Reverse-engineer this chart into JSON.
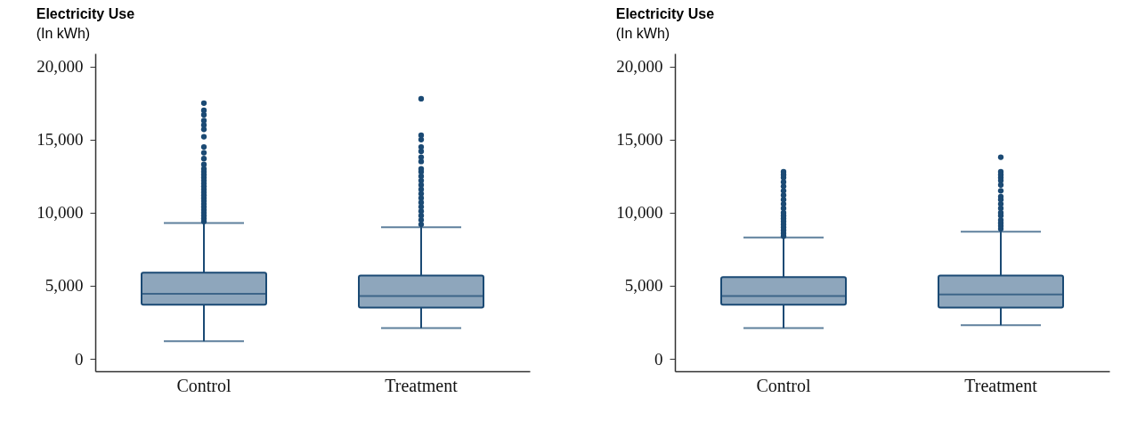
{
  "chart_data": [
    {
      "type": "box",
      "title": "Electricity Use",
      "subtitle": "(In kWh)",
      "categories": [
        "Control",
        "Treatment"
      ],
      "ylim": [
        -850,
        20900
      ],
      "yticks": [
        {
          "value": 0,
          "label": "0"
        },
        {
          "value": 5000,
          "label": "5,000"
        },
        {
          "value": 10000,
          "label": "10,000"
        },
        {
          "value": 15000,
          "label": "15,000"
        },
        {
          "value": 20000,
          "label": "20,000"
        }
      ],
      "grid": false,
      "series": [
        {
          "color": "#8ea6bc",
          "boxes": [
            {
              "low": 1200,
              "q1": 3700,
              "median": 4450,
              "q3": 5900,
              "high": 9300,
              "outliers": [
                9400,
                9600,
                9800,
                10000,
                10200,
                10400,
                10600,
                10800,
                11000,
                11200,
                11400,
                11600,
                11800,
                12000,
                12200,
                12400,
                12600,
                12800,
                13000,
                13300,
                13700,
                14100,
                14500,
                15200,
                15700,
                16000,
                16300,
                16700,
                17000,
                17500
              ]
            },
            {
              "low": 2100,
              "q1": 3500,
              "median": 4300,
              "q3": 5700,
              "high": 9000,
              "outliers": [
                9200,
                9500,
                9800,
                10100,
                10400,
                10700,
                11000,
                11300,
                11600,
                11900,
                12200,
                12500,
                12800,
                13000,
                13500,
                13800,
                14200,
                14500,
                15000,
                15300,
                17800
              ]
            }
          ]
        }
      ]
    },
    {
      "type": "box",
      "title": "Electricity Use",
      "subtitle": "(In kWh)",
      "categories": [
        "Control",
        "Treatment"
      ],
      "ylim": [
        -850,
        20900
      ],
      "yticks": [
        {
          "value": 0,
          "label": "0"
        },
        {
          "value": 5000,
          "label": "5,000"
        },
        {
          "value": 10000,
          "label": "10,000"
        },
        {
          "value": 15000,
          "label": "15,000"
        },
        {
          "value": 20000,
          "label": "20,000"
        }
      ],
      "grid": false,
      "series": [
        {
          "color": "#8ea6bc",
          "boxes": [
            {
              "low": 2100,
              "q1": 3700,
              "median": 4300,
              "q3": 5600,
              "high": 8300,
              "outliers": [
                8400,
                8600,
                8800,
                9000,
                9200,
                9400,
                9600,
                9800,
                10000,
                10300,
                10600,
                10900,
                11200,
                11500,
                11800,
                12100,
                12400,
                12600,
                12800
              ]
            },
            {
              "low": 2300,
              "q1": 3500,
              "median": 4400,
              "q3": 5700,
              "high": 8700,
              "outliers": [
                8900,
                9100,
                9300,
                9500,
                9800,
                10000,
                10300,
                10600,
                10900,
                11100,
                11500,
                11900,
                12200,
                12400,
                12600,
                12800,
                13800
              ]
            }
          ]
        }
      ]
    }
  ]
}
